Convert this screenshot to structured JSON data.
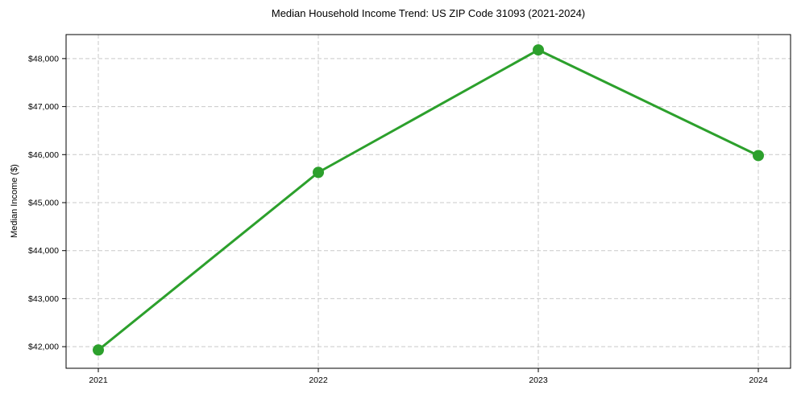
{
  "chart_data": {
    "type": "line",
    "title": "Median Household Income Trend: US ZIP Code 31093 (2021-2024)",
    "xlabel": "",
    "ylabel": "Median Income ($)",
    "categories": [
      "2021",
      "2022",
      "2023",
      "2024"
    ],
    "series": [
      {
        "name": "Median Household Income",
        "values": [
          41930,
          45630,
          48180,
          45980
        ]
      }
    ],
    "yticks": [
      42000,
      43000,
      44000,
      45000,
      46000,
      47000,
      48000
    ],
    "ytick_labels": [
      "$42,000",
      "$43,000",
      "$44,000",
      "$45,000",
      "$46,000",
      "$47,000",
      "$48,000"
    ],
    "ylim": [
      41550,
      48500
    ],
    "grid": "dashed-both",
    "legend": "none",
    "marker": "circle",
    "marker_size": 14,
    "line_width": 3,
    "colors": {
      "line": "#2ca02c",
      "grid": "#c9c9c9",
      "frame": "#000000",
      "text": "#000000",
      "background": "#ffffff"
    }
  }
}
